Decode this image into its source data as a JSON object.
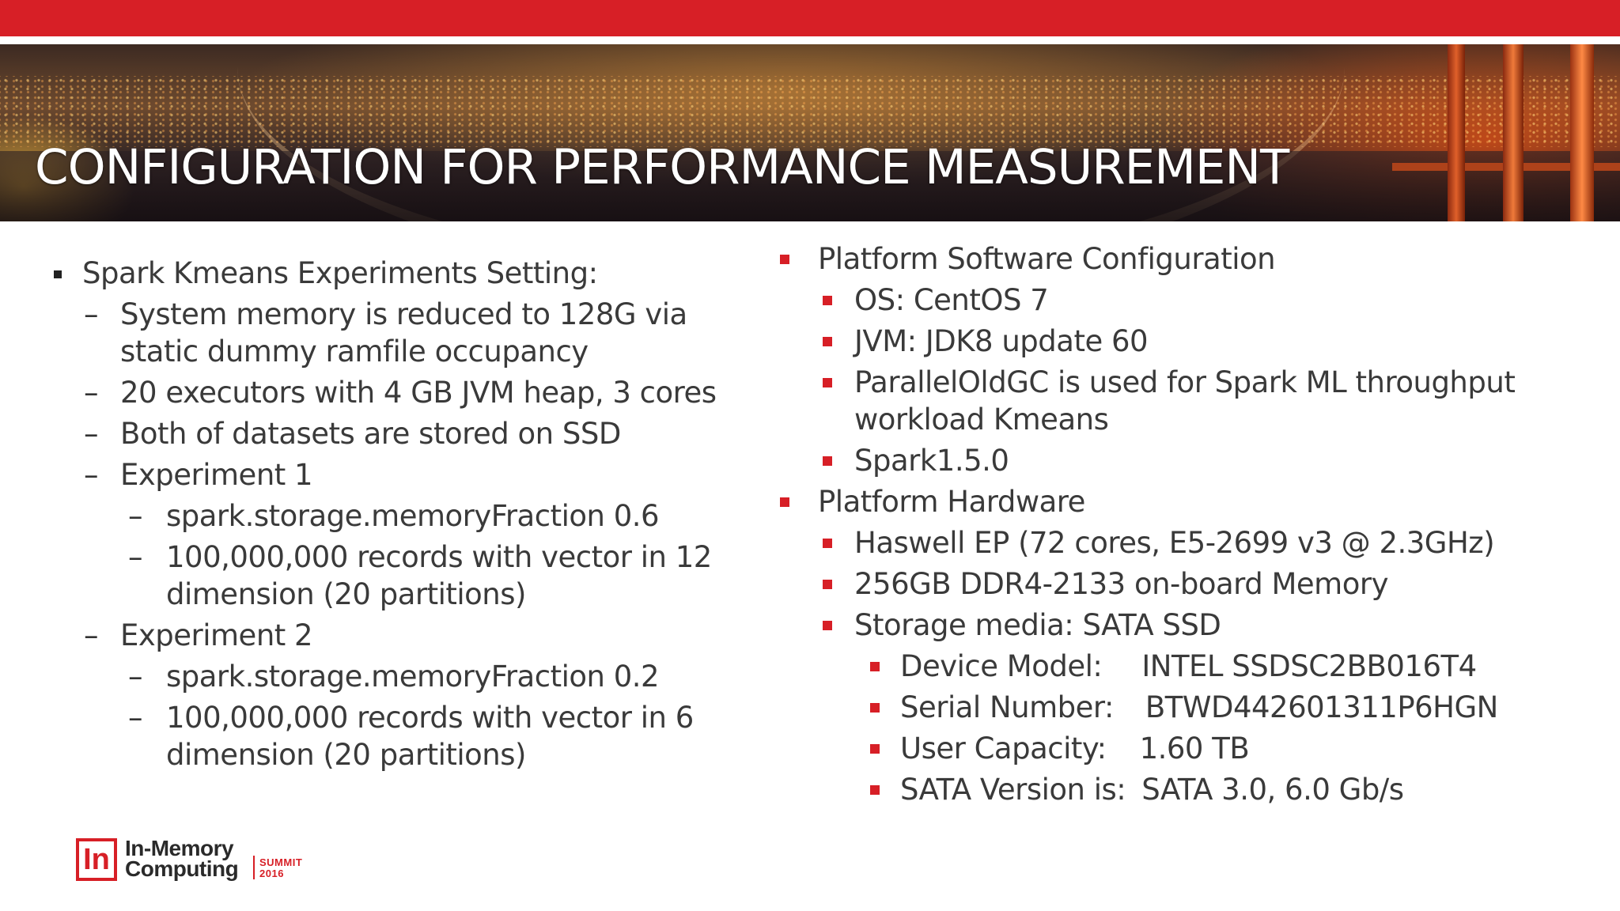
{
  "slide": {
    "title": "CONFIGURATION FOR PERFORMANCE MEASUREMENT",
    "accent_color": "#d71f26"
  },
  "left": {
    "heading": "Spark Kmeans Experiments Setting:",
    "items": [
      "System memory is reduced to 128G via static dummy ramfile occupancy",
      "20 executors with 4 GB JVM heap, 3 cores",
      "Both of datasets are stored on SSD"
    ],
    "experiment1": {
      "label": "Experiment 1",
      "items": [
        "spark.storage.memoryFraction 0.6",
        "100,000,000 records with vector in 12 dimension (20 partitions)"
      ]
    },
    "experiment2": {
      "label": "Experiment 2",
      "items": [
        "spark.storage.memoryFraction 0.2",
        "100,000,000 records with vector in 6 dimension (20 partitions)"
      ]
    }
  },
  "right": {
    "software": {
      "heading": "Platform Software Configuration",
      "items": [
        "OS:  CentOS 7",
        "JVM: JDK8 update 60",
        "ParallelOldGC is used for Spark ML throughput workload Kmeans",
        "Spark1.5.0"
      ]
    },
    "hardware": {
      "heading": "Platform Hardware",
      "items": [
        "Haswell EP (72 cores, E5-2699 v3 @ 2.3GHz)",
        "256GB DDR4-2133 on-board Memory",
        "Storage media: SATA SSD"
      ],
      "storage": [
        {
          "label": "Device Model:",
          "value": "INTEL SSDSC2BB016T4"
        },
        {
          "label": "Serial Number:",
          "value": "BTWD442601311P6HGN"
        },
        {
          "label": "User Capacity:",
          "value": "1.60 TB"
        },
        {
          "label": "SATA Version is:",
          "value": "SATA 3.0, 6.0 Gb/s"
        }
      ]
    }
  },
  "logo": {
    "mark": "In",
    "line1": "In-Memory",
    "line2": "Computing",
    "summit": "SUMMIT",
    "year": "2016"
  }
}
